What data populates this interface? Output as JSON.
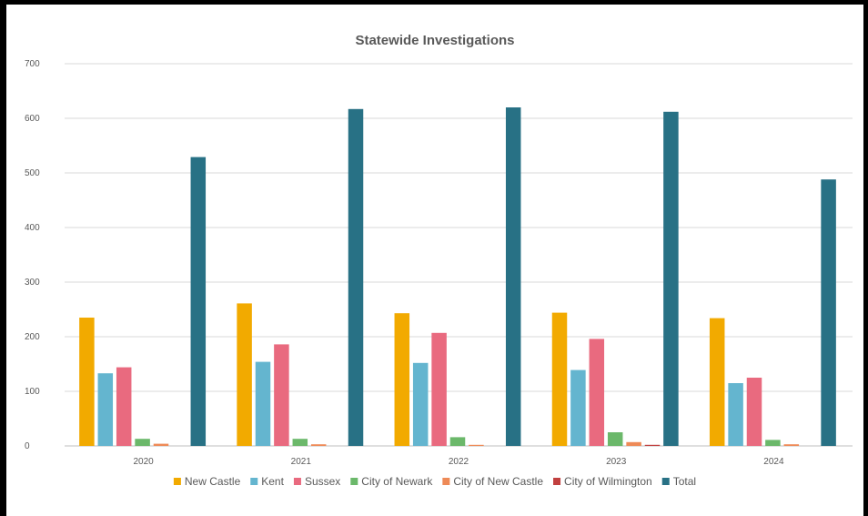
{
  "chart_data": {
    "type": "bar",
    "title": "Statewide Investigations",
    "xlabel": "",
    "ylabel": "",
    "categories": [
      "2020",
      "2021",
      "2022",
      "2023",
      "2024"
    ],
    "ylim": [
      0,
      700
    ],
    "yticks": [
      0,
      100,
      200,
      300,
      400,
      500,
      600,
      700
    ],
    "grid": true,
    "legend_position": "bottom",
    "series": [
      {
        "name": "New Castle",
        "color": "#F2AA00",
        "values": [
          235,
          261,
          243,
          244,
          234
        ]
      },
      {
        "name": "Kent",
        "color": "#64B5CF",
        "values": [
          133,
          154,
          152,
          139,
          115
        ]
      },
      {
        "name": "Sussex",
        "color": "#E96A7F",
        "values": [
          144,
          186,
          207,
          196,
          125
        ]
      },
      {
        "name": "City of Newark",
        "color": "#6BB86A",
        "values": [
          13,
          13,
          16,
          25,
          11
        ]
      },
      {
        "name": "City of New Castle",
        "color": "#EE8A57",
        "values": [
          4,
          3,
          2,
          7,
          3
        ]
      },
      {
        "name": "City of Wilmington",
        "color": "#C1403F",
        "values": [
          0,
          0,
          0,
          2,
          0
        ]
      },
      {
        "name": "Total",
        "color": "#287185",
        "values": [
          529,
          617,
          620,
          612,
          488
        ]
      }
    ]
  }
}
